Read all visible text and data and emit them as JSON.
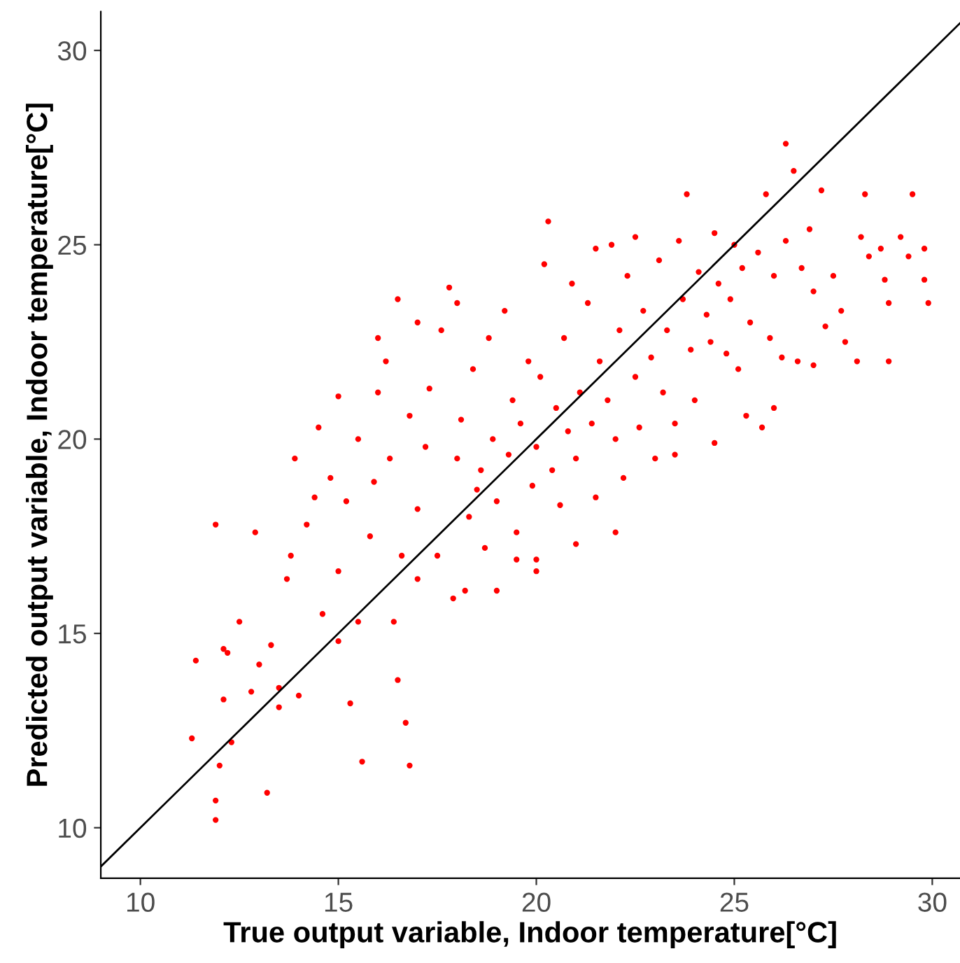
{
  "chart_data": {
    "type": "scatter",
    "xlabel": "True output variable, Indoor temperature[°C]",
    "ylabel": "Predicted output variable, Indoor temperature[°C]",
    "xlim": [
      9,
      30.7
    ],
    "ylim": [
      8.7,
      31
    ],
    "xticks": [
      10,
      15,
      20,
      25,
      30
    ],
    "yticks": [
      10,
      15,
      20,
      25,
      30
    ],
    "grid": false,
    "legend": false,
    "marker": "circle",
    "series": [
      {
        "color": "#ff0000",
        "x": [
          11.3,
          11.4,
          11.9,
          11.9,
          11.9,
          12.0,
          12.1,
          12.1,
          12.2,
          12.3,
          12.5,
          12.8,
          12.9,
          13.0,
          13.2,
          13.3,
          13.5,
          13.5,
          13.7,
          13.8,
          13.9,
          14.0,
          14.2,
          14.4,
          14.6,
          14.8,
          15.0,
          15.0,
          15.2,
          15.3,
          15.5,
          15.5,
          15.6,
          15.8,
          15.9,
          16.0,
          16.2,
          16.3,
          16.4,
          16.5,
          16.5,
          16.6,
          16.7,
          16.8,
          16.8,
          17.0,
          17.0,
          17.2,
          17.3,
          17.5,
          17.6,
          17.8,
          17.9,
          18.0,
          18.1,
          18.3,
          18.4,
          18.5,
          18.6,
          18.7,
          18.8,
          18.9,
          19.0,
          19.2,
          19.3,
          19.4,
          19.5,
          19.6,
          19.8,
          19.9,
          20.0,
          20.0,
          20.1,
          20.2,
          20.3,
          20.4,
          20.5,
          20.6,
          20.7,
          20.8,
          20.9,
          21.0,
          21.1,
          21.3,
          21.4,
          21.5,
          21.6,
          21.8,
          21.9,
          22.0,
          22.1,
          22.2,
          22.3,
          22.5,
          22.6,
          22.7,
          22.9,
          23.0,
          23.1,
          23.2,
          23.3,
          23.5,
          23.6,
          23.7,
          23.8,
          23.9,
          24.0,
          24.1,
          24.3,
          24.4,
          24.5,
          24.6,
          24.8,
          24.9,
          25.0,
          25.1,
          25.2,
          25.3,
          25.4,
          25.6,
          25.7,
          25.8,
          25.9,
          26.0,
          26.2,
          26.3,
          26.3,
          26.5,
          26.6,
          26.7,
          26.9,
          27.0,
          27.2,
          27.3,
          27.5,
          27.7,
          27.8,
          28.1,
          28.2,
          28.3,
          28.4,
          28.7,
          28.8,
          28.9,
          14.5,
          15.0,
          16.0,
          17.0,
          18.0,
          19.0,
          18.2,
          19.5,
          20.0,
          21.0,
          22.0,
          23.5,
          24.5,
          26.0,
          27.0,
          21.5,
          22.5,
          29.8,
          29.8,
          29.9,
          29.5,
          29.4,
          29.2,
          28.9
        ],
        "values": [
          12.3,
          14.3,
          17.8,
          10.2,
          10.7,
          11.6,
          13.3,
          14.6,
          14.5,
          12.2,
          15.3,
          13.5,
          17.6,
          14.2,
          10.9,
          14.7,
          13.6,
          13.1,
          16.4,
          17.0,
          19.5,
          13.4,
          17.8,
          18.5,
          15.5,
          19.0,
          16.6,
          14.8,
          18.4,
          13.2,
          15.3,
          20.0,
          11.7,
          17.5,
          18.9,
          21.2,
          22.0,
          19.5,
          15.3,
          23.6,
          13.8,
          17.0,
          12.7,
          11.6,
          20.6,
          18.2,
          16.4,
          19.8,
          21.3,
          17.0,
          22.8,
          23.9,
          15.9,
          19.5,
          20.5,
          18.0,
          21.8,
          18.7,
          19.2,
          17.2,
          22.6,
          20.0,
          18.4,
          23.3,
          19.6,
          21.0,
          17.6,
          20.4,
          22.0,
          18.8,
          19.8,
          16.9,
          21.6,
          24.5,
          25.6,
          19.2,
          20.8,
          18.3,
          22.6,
          20.2,
          24.0,
          19.5,
          21.2,
          23.5,
          20.4,
          18.5,
          22.0,
          21.0,
          25.0,
          20.0,
          22.8,
          19.0,
          24.2,
          21.6,
          20.3,
          23.3,
          22.1,
          19.5,
          24.6,
          21.2,
          22.8,
          20.4,
          25.1,
          23.6,
          26.3,
          22.3,
          21.0,
          24.3,
          23.2,
          22.5,
          25.3,
          24.0,
          22.2,
          23.6,
          25.0,
          21.8,
          24.4,
          20.6,
          23.0,
          24.8,
          20.3,
          26.3,
          22.6,
          24.2,
          22.1,
          27.6,
          25.1,
          26.9,
          22.0,
          24.4,
          25.4,
          23.8,
          26.4,
          22.9,
          24.2,
          23.3,
          22.5,
          22.0,
          25.2,
          26.3,
          24.7,
          24.9,
          24.1,
          23.5,
          20.3,
          21.1,
          22.6,
          23.0,
          23.5,
          16.1,
          16.1,
          16.9,
          16.6,
          17.3,
          17.6,
          19.6,
          19.9,
          20.8,
          21.9,
          24.9,
          25.2,
          24.9,
          24.1,
          23.5,
          26.3,
          24.7,
          25.2,
          22.0
        ]
      },
      {
        "type": "line",
        "color": "#000000",
        "x": [
          9,
          30.7
        ],
        "values": [
          9,
          30.7
        ],
        "marker": "none",
        "line_style": "solid"
      }
    ]
  }
}
